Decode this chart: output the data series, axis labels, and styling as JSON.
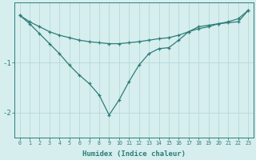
{
  "xlabel": "Humidex (Indice chaleur)",
  "x_values": [
    0,
    1,
    2,
    3,
    4,
    5,
    6,
    7,
    8,
    9,
    10,
    11,
    12,
    13,
    14,
    15,
    16,
    17,
    18,
    19,
    20,
    21,
    22,
    23
  ],
  "line1_flat": [
    -0.05,
    -0.18,
    -0.28,
    -0.38,
    -0.45,
    -0.5,
    -0.55,
    -0.58,
    -0.6,
    -0.62,
    -0.62,
    -0.6,
    -0.58,
    -0.55,
    -0.52,
    -0.5,
    -0.45,
    -0.38,
    -0.32,
    -0.28,
    -0.22,
    -0.18,
    -0.12,
    0.05
  ],
  "line2_dip": [
    -0.05,
    -0.22,
    -0.42,
    -0.62,
    -0.82,
    -1.05,
    -1.25,
    -1.42,
    -1.65,
    -2.05,
    -1.75,
    -1.38,
    -1.05,
    -0.82,
    -0.72,
    -0.7,
    -0.55,
    -0.38,
    -0.28,
    -0.25,
    -0.22,
    -0.2,
    -0.18,
    0.05
  ],
  "color": "#2e7d78",
  "bg_color": "#d6eeee",
  "grid_color": "#b8d8d8",
  "ylim": [
    -2.5,
    0.2
  ],
  "yticks": [
    -2,
    -1
  ],
  "xlim": [
    -0.5,
    23.5
  ]
}
